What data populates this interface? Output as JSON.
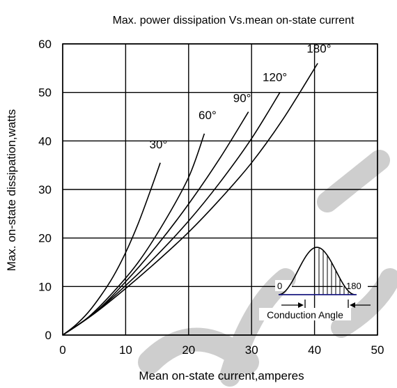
{
  "chart_data": {
    "type": "line",
    "title": "Max. power dissipation Vs.mean on-state current",
    "xlabel": "Mean on-state current,amperes",
    "ylabel": "Max. on-state dissipation,watts",
    "xlim": [
      0,
      50
    ],
    "ylim": [
      0,
      60
    ],
    "xticks": [
      0,
      10,
      20,
      30,
      40,
      50
    ],
    "yticks": [
      0,
      10,
      20,
      30,
      40,
      50,
      60
    ],
    "x_tick_labels": [
      "0",
      "10",
      "20",
      "30",
      "40",
      "50"
    ],
    "y_tick_labels": [
      "0",
      "10",
      "20",
      "30",
      "40",
      "50",
      "60"
    ],
    "grid": true,
    "series": [
      {
        "name": "30°",
        "label_at": [
          15.2,
          38.5
        ],
        "x": [
          0,
          2,
          4,
          6,
          8,
          10,
          12,
          14,
          15.5
        ],
        "y": [
          0,
          2,
          4.6,
          8,
          12,
          17,
          23,
          30,
          35.5
        ]
      },
      {
        "name": "60°",
        "label_at": [
          23.0,
          44.5
        ],
        "x": [
          0,
          4,
          8,
          12,
          16,
          20,
          22.5
        ],
        "y": [
          0,
          3.6,
          8.8,
          15,
          23,
          32.5,
          41.5
        ]
      },
      {
        "name": "90°",
        "label_at": [
          28.5,
          48.0
        ],
        "x": [
          0,
          5,
          10,
          15,
          20,
          25,
          29.5
        ],
        "y": [
          0,
          4.5,
          11,
          18.5,
          27,
          36.5,
          46
        ]
      },
      {
        "name": "120°",
        "label_at": [
          33.7,
          52.3
        ],
        "x": [
          0,
          5,
          10,
          15,
          20,
          25,
          30,
          34.5
        ],
        "y": [
          0,
          4.5,
          10.2,
          16.5,
          23.5,
          31.5,
          40.5,
          50
        ]
      },
      {
        "name": "180°",
        "label_at": [
          40.7,
          58.2
        ],
        "x": [
          0,
          5,
          10,
          15,
          20,
          25,
          30,
          35,
          40.5
        ],
        "y": [
          0,
          4.4,
          9.6,
          15.2,
          21.2,
          28,
          35.5,
          44.5,
          56
        ]
      }
    ],
    "inset": {
      "label_left": "0",
      "label_right": "180",
      "caption": "Conduction Angle"
    }
  },
  "watermark": "TECH"
}
